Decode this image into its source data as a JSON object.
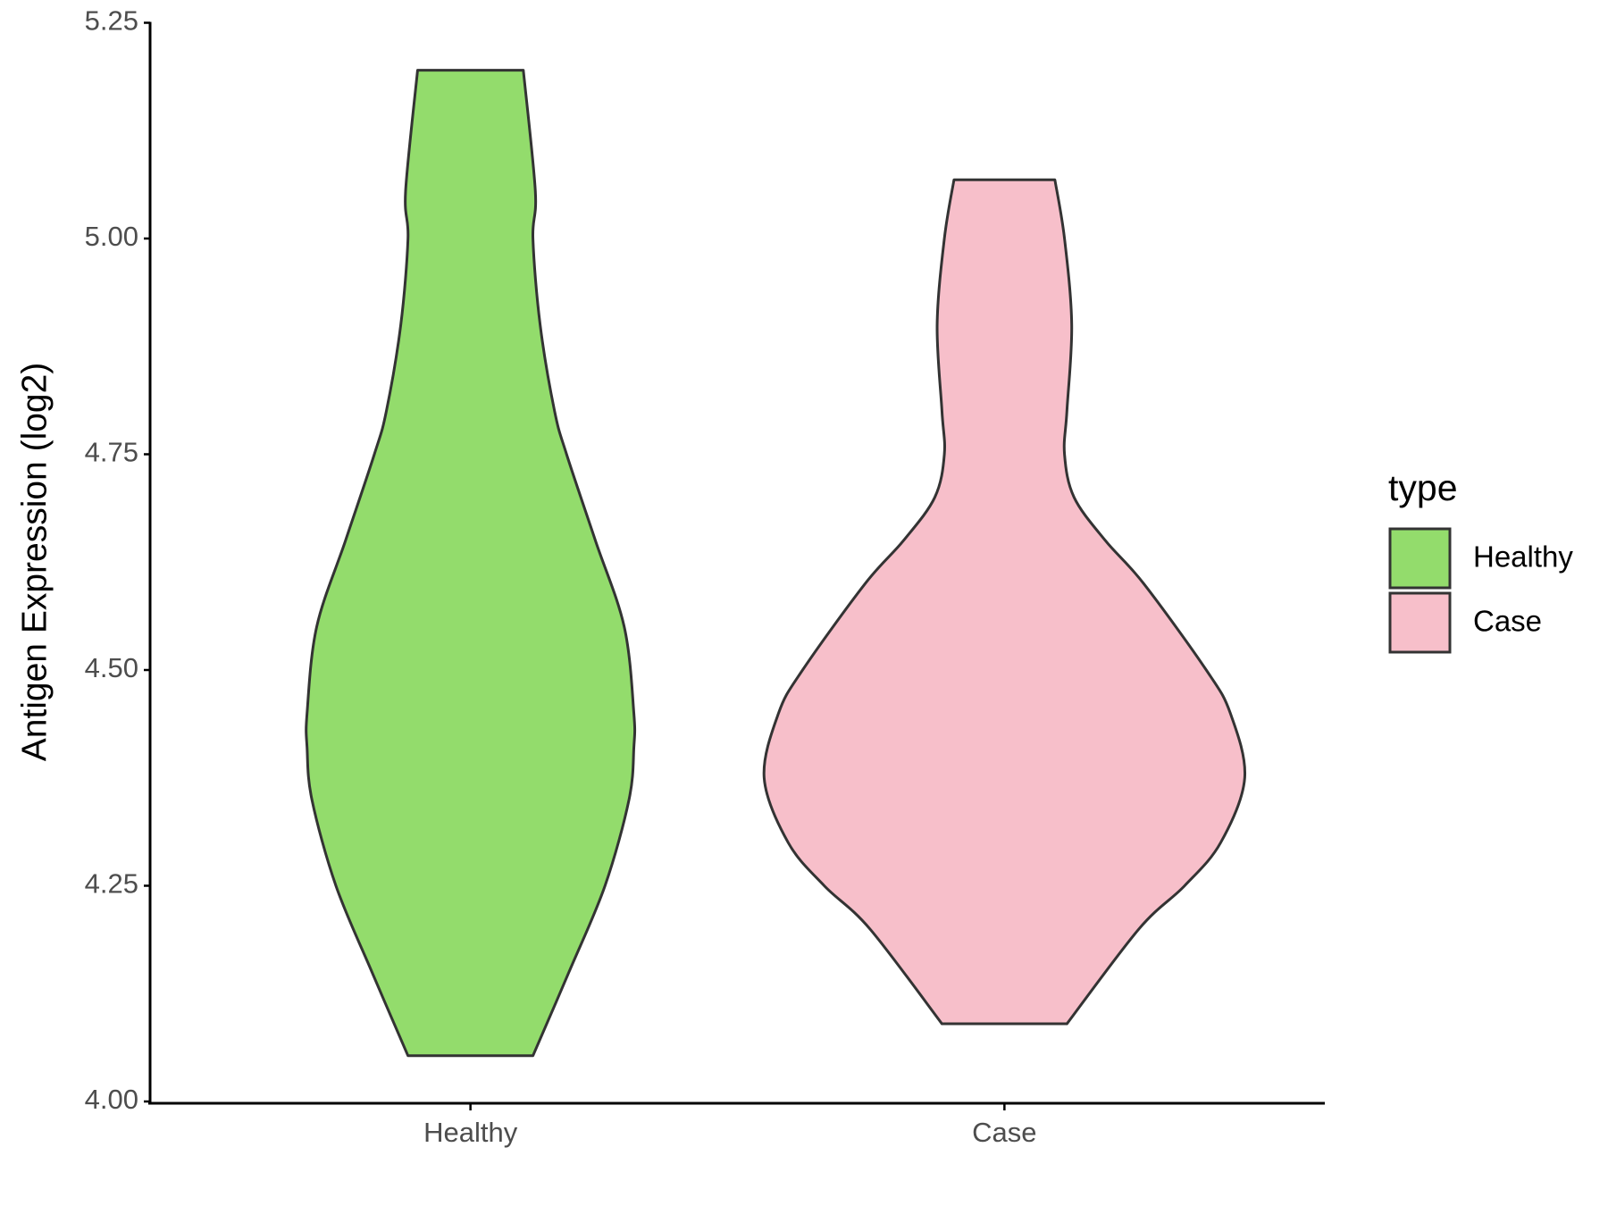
{
  "chart_data": {
    "type": "violin",
    "ylabel": "Antigen Expression (log2)",
    "categories": [
      "Healthy",
      "Case"
    ],
    "legend_title": "type",
    "legend_position": "right",
    "ylim": [
      4.0,
      5.25
    ],
    "yticks": [
      {
        "value": 4.0,
        "label": "4.00"
      },
      4.25,
      {
        "value": 4.5,
        "label": "4.50"
      },
      4.75,
      {
        "value": 5.0,
        "label": "5.00"
      },
      5.25
    ],
    "series": [
      {
        "name": "Healthy",
        "color": "#93dc6c",
        "y": [
          5.195,
          5.055,
          5.0,
          4.9,
          4.8,
          4.75,
          4.65,
          4.55,
          4.45,
          4.41,
          4.35,
          4.25,
          4.15,
          4.053
        ],
        "density": [
          0.22,
          0.27,
          0.26,
          0.29,
          0.35,
          0.4,
          0.52,
          0.64,
          0.68,
          0.68,
          0.66,
          0.56,
          0.41,
          0.26
        ]
      },
      {
        "name": "Case",
        "color": "#f7bfca",
        "y": [
          5.068,
          5.0,
          4.9,
          4.8,
          4.75,
          4.7,
          4.65,
          4.6,
          4.5,
          4.45,
          4.375,
          4.3,
          4.25,
          4.2,
          4.09
        ],
        "density": [
          0.21,
          0.25,
          0.28,
          0.26,
          0.25,
          0.29,
          0.42,
          0.58,
          0.84,
          0.94,
          1.0,
          0.9,
          0.75,
          0.56,
          0.26
        ]
      }
    ]
  }
}
